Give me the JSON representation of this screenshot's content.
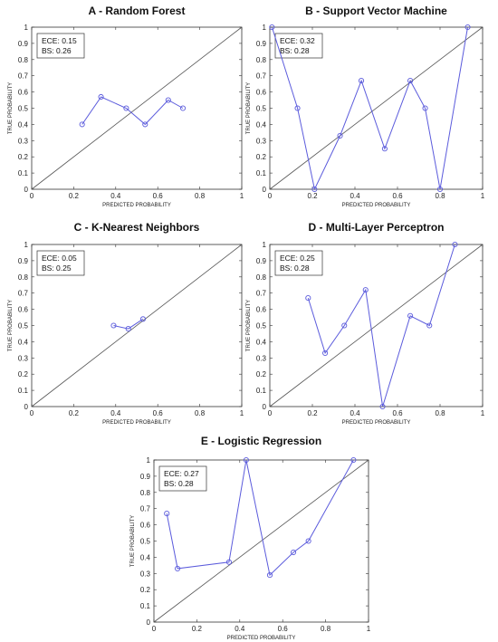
{
  "chart_data": [
    {
      "type": "line",
      "title": "A - Random Forest",
      "xlabel": "PREDICTED PROBABILITY",
      "ylabel": "TRUE PROBABILITY",
      "xlim": [
        0,
        1
      ],
      "ylim": [
        0,
        1
      ],
      "xticks": [
        "0",
        "0.2",
        "0.4",
        "0.6",
        "0.8",
        "1"
      ],
      "yticks": [
        "0",
        "0.1",
        "0.2",
        "0.3",
        "0.4",
        "0.5",
        "0.6",
        "0.7",
        "0.8",
        "0.9",
        "1"
      ],
      "metrics": [
        "ECE: 0.15",
        "BS: 0.26"
      ],
      "reference_line": "y = x",
      "x": [
        0.24,
        0.33,
        0.45,
        0.54,
        0.65,
        0.72
      ],
      "y": [
        0.4,
        0.57,
        0.5,
        0.4,
        0.55,
        0.5
      ]
    },
    {
      "type": "line",
      "title": "B - Support Vector Machine",
      "xlabel": "PREDICTED PROBABILITY",
      "ylabel": "TRUE PROBABILITY",
      "xlim": [
        0,
        1
      ],
      "ylim": [
        0,
        1
      ],
      "xticks": [
        "0",
        "0.2",
        "0.4",
        "0.6",
        "0.8",
        "1"
      ],
      "yticks": [
        "0",
        "0.1",
        "0.2",
        "0.3",
        "0.4",
        "0.5",
        "0.6",
        "0.7",
        "0.8",
        "0.9",
        "1"
      ],
      "metrics": [
        "ECE: 0.32",
        "BS: 0.28"
      ],
      "reference_line": "y = x",
      "x": [
        0.01,
        0.13,
        0.21,
        0.33,
        0.43,
        0.54,
        0.66,
        0.73,
        0.8,
        0.93
      ],
      "y": [
        1.0,
        0.5,
        0.0,
        0.33,
        0.67,
        0.25,
        0.67,
        0.5,
        0.0,
        1.0
      ]
    },
    {
      "type": "line",
      "title": "C - K-Nearest Neighbors",
      "xlabel": "PREDICTED PROBABILITY",
      "ylabel": "TRUE PROBABILITY",
      "xlim": [
        0,
        1
      ],
      "ylim": [
        0,
        1
      ],
      "xticks": [
        "0",
        "0.2",
        "0.4",
        "0.6",
        "0.8",
        "1"
      ],
      "yticks": [
        "0",
        "0.1",
        "0.2",
        "0.3",
        "0.4",
        "0.5",
        "0.6",
        "0.7",
        "0.8",
        "0.9",
        "1"
      ],
      "metrics": [
        "ECE: 0.05",
        "BS: 0.25"
      ],
      "reference_line": "y = x",
      "x": [
        0.39,
        0.46,
        0.53
      ],
      "y": [
        0.5,
        0.48,
        0.54
      ]
    },
    {
      "type": "line",
      "title": "D - Multi-Layer Perceptron",
      "xlabel": "PREDICTED PROBABILITY",
      "ylabel": "TRUE PROBABILITY",
      "xlim": [
        0,
        1
      ],
      "ylim": [
        0,
        1
      ],
      "xticks": [
        "0",
        "0.2",
        "0.4",
        "0.6",
        "0.8",
        "1"
      ],
      "yticks": [
        "0",
        "0.1",
        "0.2",
        "0.3",
        "0.4",
        "0.5",
        "0.6",
        "0.7",
        "0.8",
        "0.9",
        "1"
      ],
      "metrics": [
        "ECE: 0.25",
        "BS: 0.28"
      ],
      "reference_line": "y = x",
      "x": [
        0.18,
        0.26,
        0.35,
        0.45,
        0.53,
        0.66,
        0.75,
        0.87
      ],
      "y": [
        0.67,
        0.33,
        0.5,
        0.72,
        0.0,
        0.56,
        0.5,
        1.0
      ]
    },
    {
      "type": "line",
      "title": "E - Logistic Regression",
      "xlabel": "PREDICTED PROBABILITY",
      "ylabel": "TRUE PROBABILITY",
      "xlim": [
        0,
        1
      ],
      "ylim": [
        0,
        1
      ],
      "xticks": [
        "0",
        "0.2",
        "0.4",
        "0.6",
        "0.8",
        "1"
      ],
      "yticks": [
        "0",
        "0.1",
        "0.2",
        "0.3",
        "0.4",
        "0.5",
        "0.6",
        "0.7",
        "0.8",
        "0.9",
        "1"
      ],
      "metrics": [
        "ECE: 0.27",
        "BS: 0.28"
      ],
      "reference_line": "y = x",
      "x": [
        0.06,
        0.11,
        0.35,
        0.43,
        0.54,
        0.65,
        0.72,
        0.93
      ],
      "y": [
        0.67,
        0.33,
        0.37,
        1.0,
        0.29,
        0.43,
        0.5,
        1.0
      ]
    }
  ],
  "colors": {
    "series": "#5b5bdc",
    "reference": "#555555",
    "axis": "#333333"
  }
}
